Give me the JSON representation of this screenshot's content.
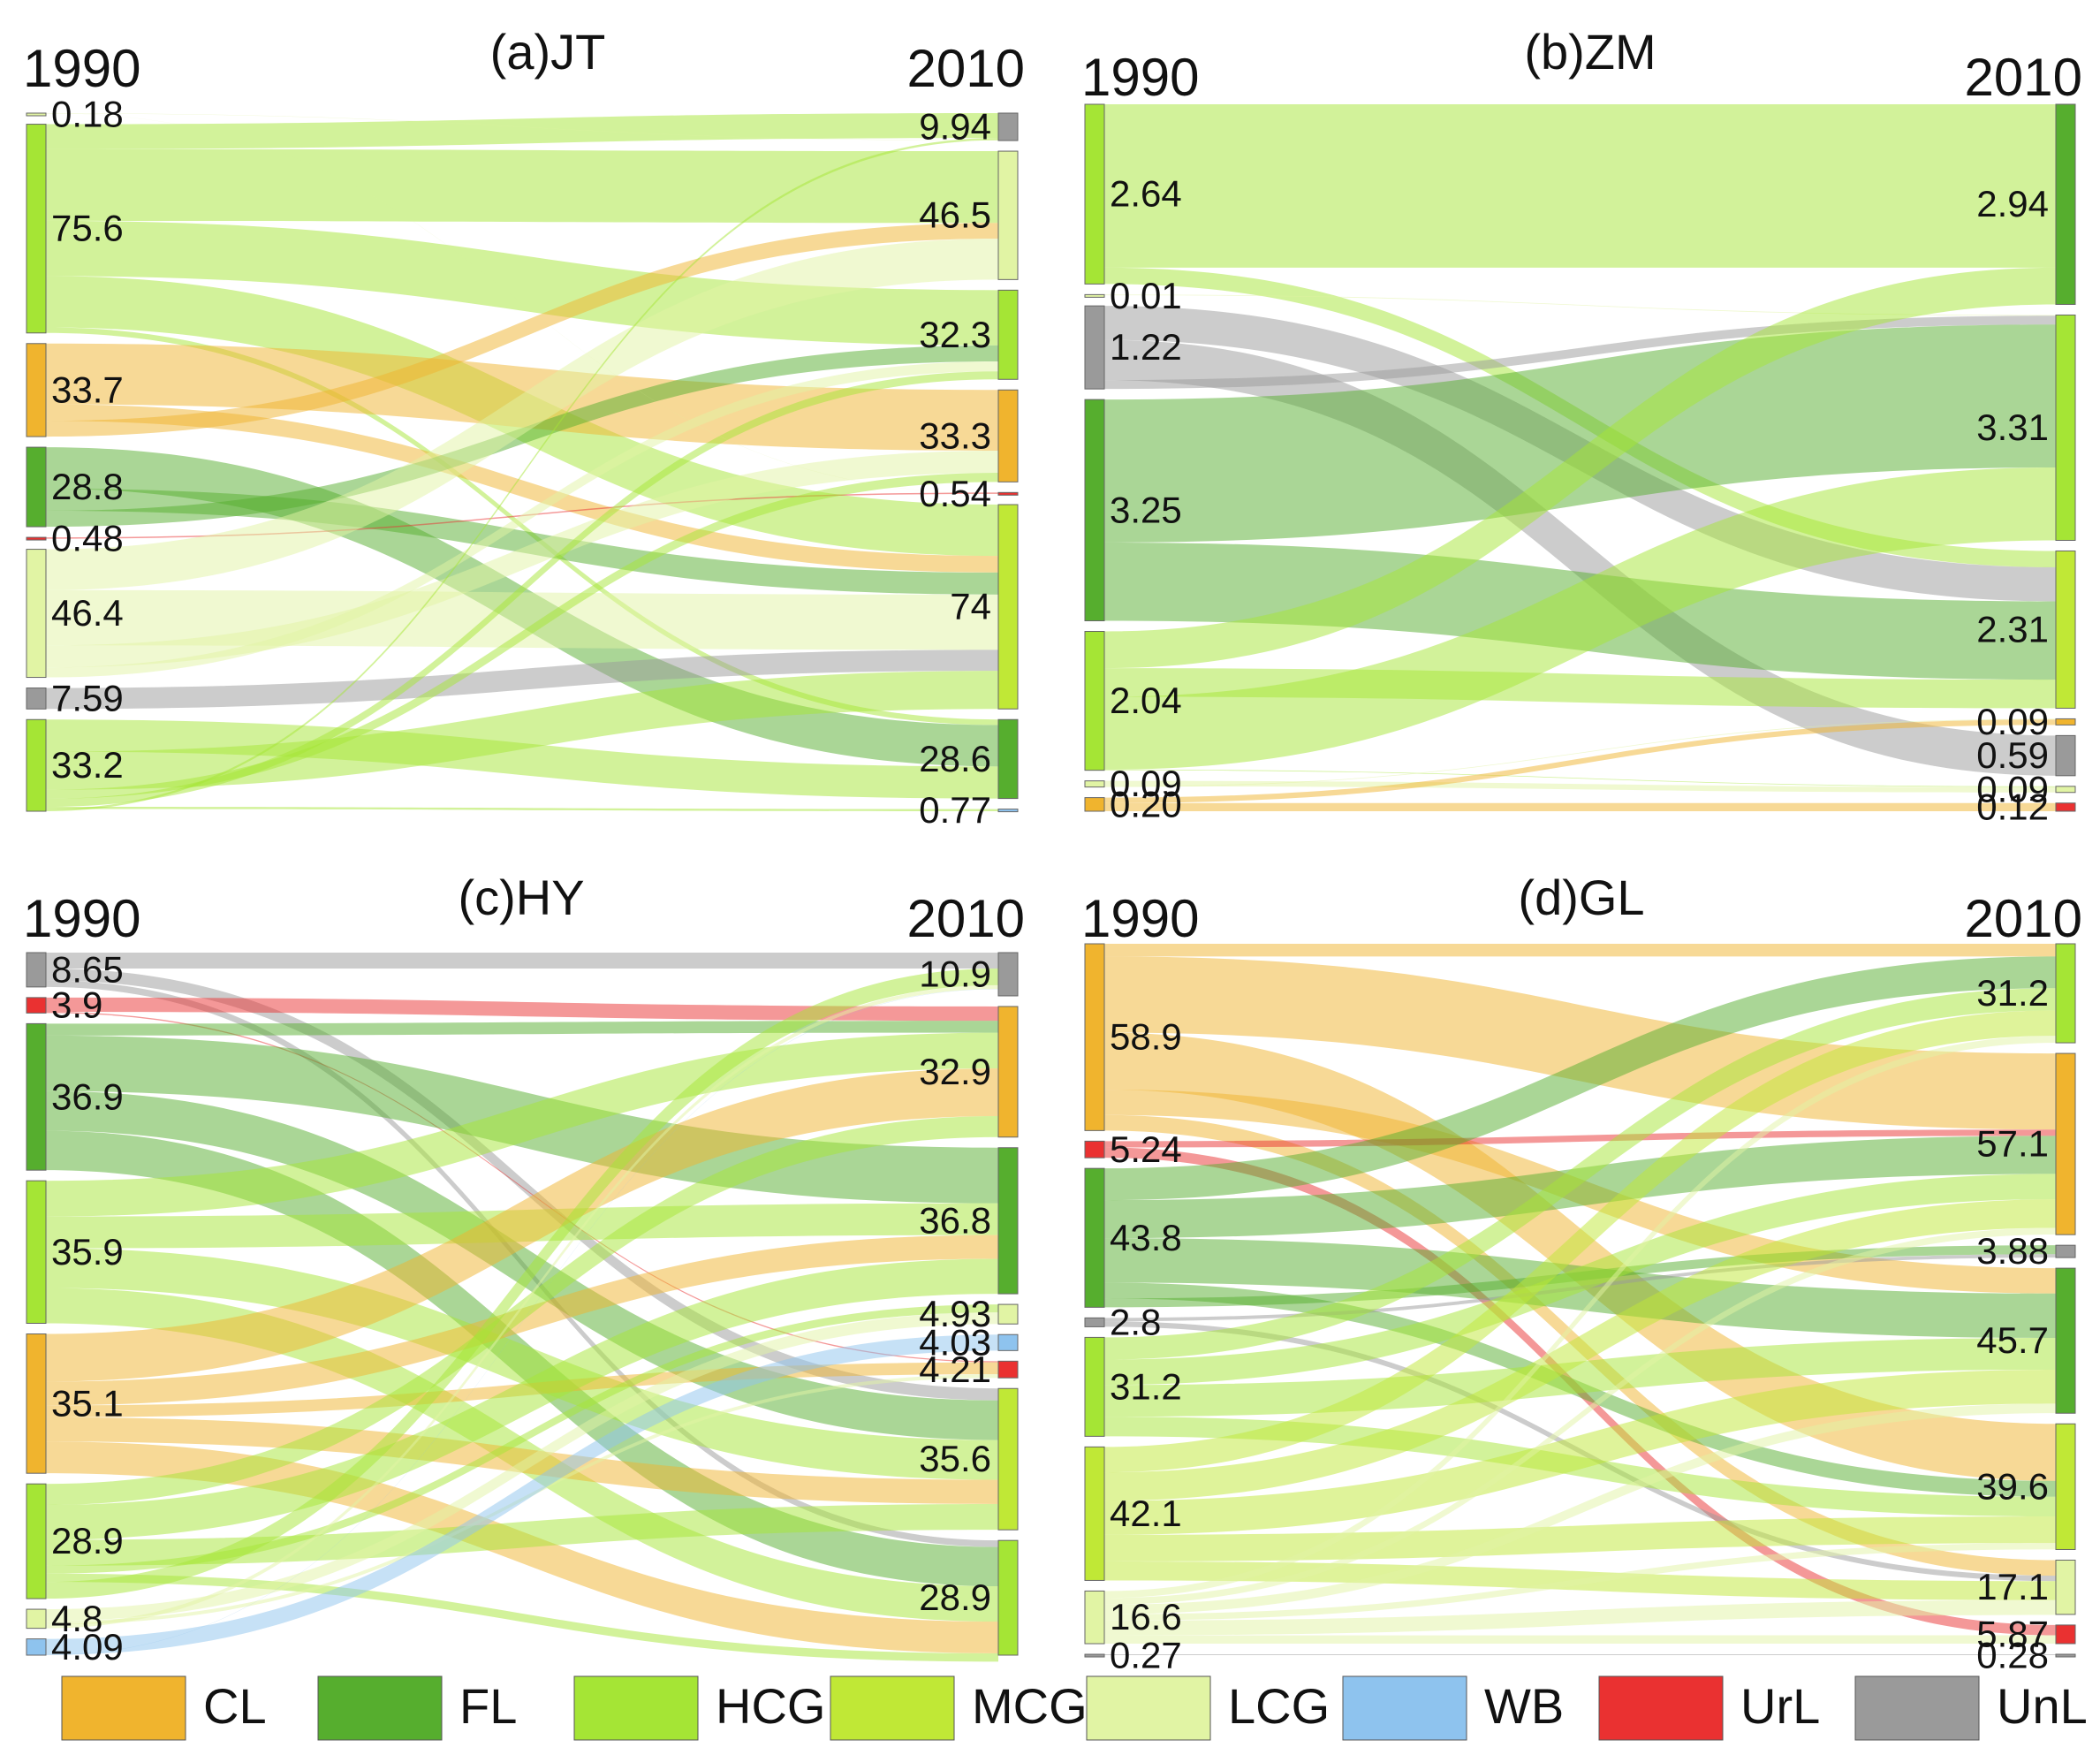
{
  "chart_data": {
    "type": "sankey",
    "categories": [
      {
        "code": "CL",
        "color": "#F0B42E"
      },
      {
        "code": "FL",
        "color": "#56AE2E"
      },
      {
        "code": "HCG",
        "color": "#A5E535"
      },
      {
        "code": "MCG",
        "color": "#C0E836"
      },
      {
        "code": "LCG",
        "color": "#E1F4A4"
      },
      {
        "code": "WB",
        "color": "#8EC3EE"
      },
      {
        "code": "UrL",
        "color": "#EA3131"
      },
      {
        "code": "UnL",
        "color": "#9A9A9A"
      }
    ],
    "panels": [
      {
        "title": "(a)JT",
        "left_year": "1990",
        "right_year": "2010",
        "left_nodes": [
          {
            "cat": "LCG",
            "label": "0.18",
            "value": 0.18
          },
          {
            "cat": "HCG",
            "label": "75.6",
            "value": 75.6
          },
          {
            "cat": "CL",
            "label": "33.7",
            "value": 33.7
          },
          {
            "cat": "FL",
            "label": "28.8",
            "value": 28.8
          },
          {
            "cat": "UrL",
            "label": "0.48",
            "value": 0.48
          },
          {
            "cat": "LCG",
            "label": "46.4",
            "value": 46.4
          },
          {
            "cat": "UnL",
            "label": "7.59",
            "value": 7.59
          },
          {
            "cat": "HCG",
            "label": "33.2",
            "value": 33.2
          }
        ],
        "right_nodes": [
          {
            "cat": "UnL",
            "label": "9.94",
            "value": 9.94
          },
          {
            "cat": "LCG",
            "label": "46.5",
            "value": 46.5
          },
          {
            "cat": "HCG",
            "label": "32.3",
            "value": 32.3
          },
          {
            "cat": "CL",
            "label": "33.3",
            "value": 33.3
          },
          {
            "cat": "UrL",
            "label": "0.54",
            "value": 0.54
          },
          {
            "cat": "MCG",
            "label": "74",
            "value": 74
          },
          {
            "cat": "FL",
            "label": "28.6",
            "value": 28.6
          },
          {
            "cat": "WB",
            "label": "0.77",
            "value": 0.77
          }
        ],
        "flows": [
          [
            1,
            0,
            9.0
          ],
          [
            1,
            1,
            26.0
          ],
          [
            1,
            2,
            20.0
          ],
          [
            1,
            5,
            18.6
          ],
          [
            1,
            6,
            2.0
          ],
          [
            2,
            3,
            22.0
          ],
          [
            2,
            5,
            6.0
          ],
          [
            2,
            1,
            5.7
          ],
          [
            3,
            6,
            15.0
          ],
          [
            3,
            5,
            8.0
          ],
          [
            3,
            2,
            5.8
          ],
          [
            4,
            4,
            0.48
          ],
          [
            5,
            1,
            14.8
          ],
          [
            5,
            5,
            20.0
          ],
          [
            5,
            3,
            8.0
          ],
          [
            5,
            2,
            3.6
          ],
          [
            6,
            5,
            7.59
          ],
          [
            7,
            6,
            11.6
          ],
          [
            7,
            5,
            13.81
          ],
          [
            7,
            3,
            3.3
          ],
          [
            7,
            2,
            2.9
          ],
          [
            7,
            7,
            0.77
          ],
          [
            7,
            0,
            0.82
          ],
          [
            0,
            4,
            0.06
          ],
          [
            0,
            0,
            0.12
          ]
        ]
      },
      {
        "title": "(b)ZM",
        "left_year": "1990",
        "right_year": "2010",
        "left_nodes": [
          {
            "cat": "HCG",
            "label": "2.64",
            "value": 2.64
          },
          {
            "cat": "LCG",
            "label": "0.01",
            "value": 0.01
          },
          {
            "cat": "UnL",
            "label": "1.22",
            "value": 1.22
          },
          {
            "cat": "FL",
            "label": "3.25",
            "value": 3.25
          },
          {
            "cat": "HCG",
            "label": "2.04",
            "value": 2.04
          },
          {
            "cat": "LCG",
            "label": "0.09",
            "value": 0.09
          },
          {
            "cat": "CL",
            "label": "0.20",
            "value": 0.2
          }
        ],
        "right_nodes": [
          {
            "cat": "FL",
            "label": "2.94",
            "value": 2.94
          },
          {
            "cat": "HCG",
            "label": "3.31",
            "value": 3.31
          },
          {
            "cat": "MCG",
            "label": "2.31",
            "value": 2.31
          },
          {
            "cat": "CL",
            "label": "0.09",
            "value": 0.09
          },
          {
            "cat": "UnL",
            "label": "0.59",
            "value": 0.59
          },
          {
            "cat": "LCG",
            "label": "0.09",
            "value": 0.09
          },
          {
            "cat": "UrL",
            "label": "0.12",
            "value": 0.12
          }
        ],
        "flows": [
          [
            0,
            0,
            2.4
          ],
          [
            0,
            2,
            0.24
          ],
          [
            1,
            1,
            0.01
          ],
          [
            2,
            2,
            0.5
          ],
          [
            2,
            4,
            0.59
          ],
          [
            2,
            1,
            0.13
          ],
          [
            3,
            1,
            2.1
          ],
          [
            3,
            2,
            1.15
          ],
          [
            4,
            0,
            0.54
          ],
          [
            4,
            2,
            0.42
          ],
          [
            4,
            1,
            1.07
          ],
          [
            4,
            5,
            0.01
          ],
          [
            5,
            5,
            0.08
          ],
          [
            5,
            3,
            0.01
          ],
          [
            6,
            3,
            0.08
          ],
          [
            6,
            6,
            0.12
          ]
        ]
      },
      {
        "title": "(c)HY",
        "left_year": "1990",
        "right_year": "2010",
        "left_nodes": [
          {
            "cat": "UnL",
            "label": "8.65",
            "value": 8.65
          },
          {
            "cat": "UrL",
            "label": "3.9",
            "value": 3.9
          },
          {
            "cat": "FL",
            "label": "36.9",
            "value": 36.9
          },
          {
            "cat": "HCG",
            "label": "35.9",
            "value": 35.9
          },
          {
            "cat": "CL",
            "label": "35.1",
            "value": 35.1
          },
          {
            "cat": "HCG",
            "label": "28.9",
            "value": 28.9
          },
          {
            "cat": "LCG",
            "label": "4.8",
            "value": 4.8
          },
          {
            "cat": "WB",
            "label": "4.09",
            "value": 4.09
          }
        ],
        "right_nodes": [
          {
            "cat": "UnL",
            "label": "10.9",
            "value": 10.9
          },
          {
            "cat": "CL",
            "label": "32.9",
            "value": 32.9
          },
          {
            "cat": "FL",
            "label": "36.8",
            "value": 36.8
          },
          {
            "cat": "LCG",
            "label": "4.93",
            "value": 4.93
          },
          {
            "cat": "WB",
            "label": "4.03",
            "value": 4.03
          },
          {
            "cat": "UrL",
            "label": "4.21",
            "value": 4.21
          },
          {
            "cat": "MCG",
            "label": "35.6",
            "value": 35.6
          },
          {
            "cat": "HCG",
            "label": "28.9",
            "value": 28.9
          }
        ],
        "flows": [
          [
            0,
            0,
            4.0
          ],
          [
            0,
            6,
            3.0
          ],
          [
            0,
            7,
            1.65
          ],
          [
            1,
            1,
            3.6
          ],
          [
            1,
            5,
            0.3
          ],
          [
            2,
            1,
            3.0
          ],
          [
            2,
            2,
            14.0
          ],
          [
            2,
            6,
            10.0
          ],
          [
            2,
            7,
            9.9
          ],
          [
            3,
            1,
            9.0
          ],
          [
            3,
            2,
            8.0
          ],
          [
            3,
            6,
            10.0
          ],
          [
            3,
            7,
            8.9
          ],
          [
            4,
            1,
            12.0
          ],
          [
            4,
            2,
            6.0
          ],
          [
            4,
            5,
            3.0
          ],
          [
            4,
            6,
            6.1
          ],
          [
            4,
            7,
            8.0
          ],
          [
            5,
            1,
            5.3
          ],
          [
            5,
            2,
            8.8
          ],
          [
            5,
            6,
            6.5
          ],
          [
            5,
            3,
            2.0
          ],
          [
            5,
            7,
            2.1
          ],
          [
            5,
            0,
            4.2
          ],
          [
            6,
            3,
            2.93
          ],
          [
            6,
            7,
            0.0
          ],
          [
            6,
            5,
            0.91
          ],
          [
            6,
            0,
            0.96
          ],
          [
            7,
            4,
            4.03
          ],
          [
            7,
            0,
            0.06
          ]
        ]
      },
      {
        "title": "(d)GL",
        "left_year": "1990",
        "right_year": "2010",
        "left_nodes": [
          {
            "cat": "CL",
            "label": "58.9",
            "value": 58.9
          },
          {
            "cat": "UrL",
            "label": "5.24",
            "value": 5.24
          },
          {
            "cat": "FL",
            "label": "43.8",
            "value": 43.8
          },
          {
            "cat": "UnL",
            "label": "2.8",
            "value": 2.8
          },
          {
            "cat": "HCG",
            "label": "31.2",
            "value": 31.2
          },
          {
            "cat": "MCG",
            "label": "42.1",
            "value": 42.1
          },
          {
            "cat": "LCG",
            "label": "16.6",
            "value": 16.6
          },
          {
            "cat": "UnL",
            "label": "0.27",
            "value": 0.27
          }
        ],
        "right_nodes": [
          {
            "cat": "HCG",
            "label": "31.2",
            "value": 31.2
          },
          {
            "cat": "CL",
            "label": "57.1",
            "value": 57.1
          },
          {
            "cat": "UnL",
            "label": "3.88",
            "value": 3.88
          },
          {
            "cat": "FL",
            "label": "45.7",
            "value": 45.7
          },
          {
            "cat": "MCG",
            "label": "39.6",
            "value": 39.6
          },
          {
            "cat": "LCG",
            "label": "17.1",
            "value": 17.1
          },
          {
            "cat": "UrL",
            "label": "5.87",
            "value": 5.87
          },
          {
            "cat": "UnL",
            "label": "0.28",
            "value": 0.28
          }
        ],
        "flows": [
          [
            0,
            0,
            4.0
          ],
          [
            0,
            1,
            24.0
          ],
          [
            0,
            4,
            18.0
          ],
          [
            0,
            3,
            8.0
          ],
          [
            0,
            5,
            4.9
          ],
          [
            1,
            1,
            2.0
          ],
          [
            1,
            6,
            3.24
          ],
          [
            2,
            0,
            10.0
          ],
          [
            2,
            1,
            12.0
          ],
          [
            2,
            3,
            14.0
          ],
          [
            2,
            4,
            5.0
          ],
          [
            2,
            2,
            2.8
          ],
          [
            3,
            2,
            1.08
          ],
          [
            3,
            5,
            1.72
          ],
          [
            4,
            0,
            7.0
          ],
          [
            4,
            1,
            8.0
          ],
          [
            4,
            3,
            10.0
          ],
          [
            4,
            4,
            6.2
          ],
          [
            5,
            0,
            8.0
          ],
          [
            5,
            1,
            9.0
          ],
          [
            5,
            3,
            10.7
          ],
          [
            5,
            4,
            8.4
          ],
          [
            5,
            5,
            6.0
          ],
          [
            6,
            0,
            2.2
          ],
          [
            6,
            1,
            2.1
          ],
          [
            6,
            3,
            3.0
          ],
          [
            6,
            4,
            2.0
          ],
          [
            6,
            5,
            4.67
          ],
          [
            6,
            6,
            2.63
          ],
          [
            7,
            7,
            0.27
          ]
        ]
      }
    ],
    "legend": [
      "CL",
      "FL",
      "HCG",
      "MCG",
      "LCG",
      "WB",
      "UrL",
      "UnL"
    ]
  }
}
